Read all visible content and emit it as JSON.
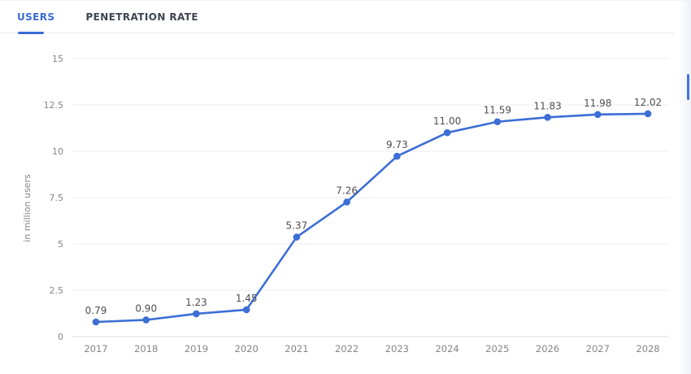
{
  "tabs": [
    {
      "label": "USERS",
      "active": true
    },
    {
      "label": "PENETRATION RATE",
      "active": false
    }
  ],
  "chart_data": {
    "type": "line",
    "x": [
      "2017",
      "2018",
      "2019",
      "2020",
      "2021",
      "2022",
      "2023",
      "2024",
      "2025",
      "2026",
      "2027",
      "2028"
    ],
    "values": [
      0.79,
      0.9,
      1.23,
      1.45,
      5.37,
      7.26,
      9.73,
      11.0,
      11.59,
      11.83,
      11.98,
      12.02
    ],
    "point_labels": [
      "0.79",
      "0.90",
      "1.23",
      "1.45",
      "5.37",
      "7.26",
      "9.73",
      "11.00",
      "11.59",
      "11.83",
      "11.98",
      "12.02"
    ],
    "title": "",
    "xlabel": "",
    "ylabel": "in million users",
    "ylim": [
      0,
      15
    ],
    "yticks": [
      0,
      2.5,
      5,
      7.5,
      10,
      12.5,
      15
    ],
    "ytick_labels": [
      "0",
      "2.5",
      "5",
      "7.5",
      "10",
      "12.5",
      "15"
    ],
    "grid": true,
    "legend_position": "none",
    "line_color": "#3c6ed5",
    "point_color": "#3c6ed5",
    "grid_color": "#ededf2",
    "zero_line_color": "#dcdce3",
    "tick_label_color": "#85858a",
    "value_label_color": "#4f4f54"
  },
  "accent_color": "#3a6bd5",
  "scrollbar": {
    "color": "#4273d9"
  }
}
